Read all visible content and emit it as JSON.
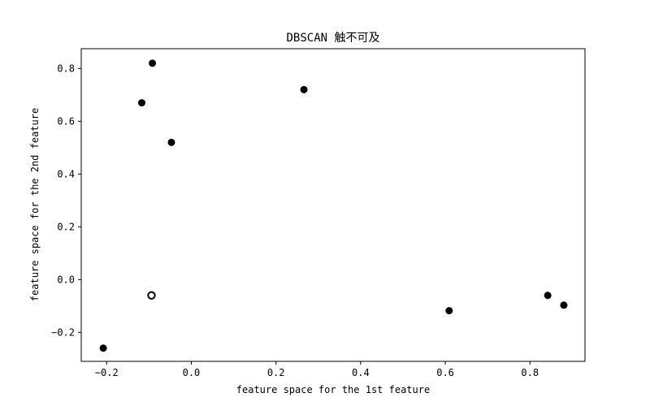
{
  "chart_data": {
    "type": "scatter",
    "title": "DBSCAN 触不可及",
    "xlabel": "feature space for the 1st feature",
    "ylabel": "feature space for the 2nd feature",
    "xlim": [
      -0.26,
      0.93
    ],
    "ylim": [
      -0.31,
      0.875
    ],
    "xticks": [
      -0.2,
      0.0,
      0.2,
      0.4,
      0.6,
      0.8
    ],
    "yticks": [
      -0.2,
      0.0,
      0.2,
      0.4,
      0.6,
      0.8
    ],
    "xtick_labels": [
      "−0.2",
      "0.0",
      "0.2",
      "0.4",
      "0.6",
      "0.8"
    ],
    "ytick_labels": [
      "−0.2",
      "0.0",
      "0.2",
      "0.4",
      "0.6",
      "0.8"
    ],
    "grid": false,
    "marker_color": "#000000",
    "series": [
      {
        "points": [
          {
            "x": -0.092,
            "y": 0.82
          },
          {
            "x": -0.117,
            "y": 0.67
          },
          {
            "x": -0.047,
            "y": 0.52
          },
          {
            "x": 0.266,
            "y": 0.72
          },
          {
            "x": -0.208,
            "y": -0.26
          },
          {
            "x": 0.609,
            "y": -0.118
          },
          {
            "x": 0.842,
            "y": -0.06
          },
          {
            "x": 0.88,
            "y": -0.097
          }
        ]
      },
      {
        "style": "hollow",
        "points": [
          {
            "x": -0.094,
            "y": -0.06
          }
        ]
      }
    ]
  }
}
